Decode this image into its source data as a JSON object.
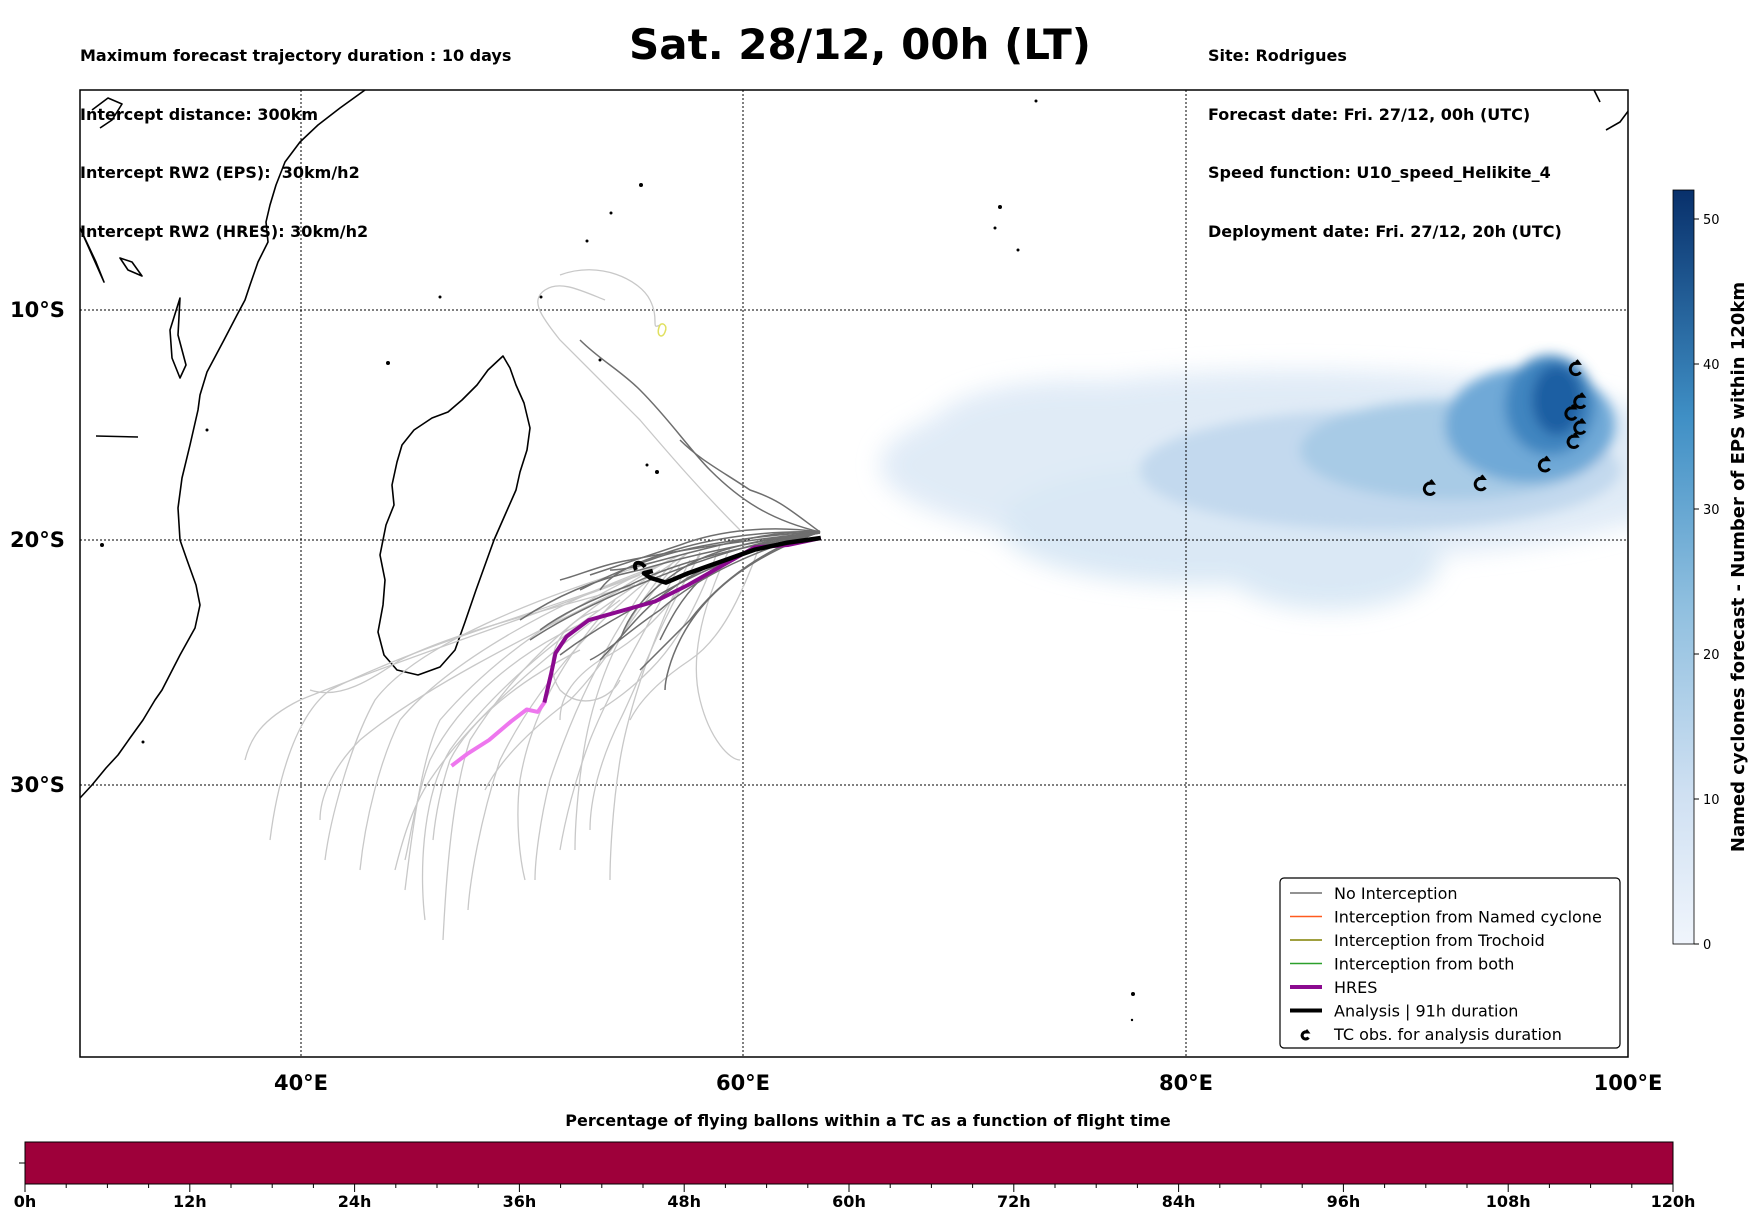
{
  "header": {
    "left_lines": [
      "Maximum forecast trajectory duration : 10 days",
      "Intercept distance: 300km",
      "Intercept RW2 (EPS):  30km/h2",
      "Intercept RW2 (HRES): 30km/h2"
    ],
    "right_lines": [
      "Site: Rodrigues",
      "Forecast date: Fri. 27/12, 00h (UTC)",
      "Speed function: U10_speed_Helikite_4",
      "Deployment date: Fri. 27/12, 20h (UTC)"
    ],
    "title": "Sat. 28/12, 00h (LT)"
  },
  "map": {
    "lon_range": [
      30,
      100
    ],
    "lat_range": [
      -42,
      0
    ],
    "lat_labels": [
      {
        "lat": -10,
        "label": "10°S"
      },
      {
        "lat": -20,
        "label": "20°S"
      },
      {
        "lat": -30,
        "label": "30°S"
      }
    ],
    "lon_labels": [
      {
        "lon": 40,
        "label": "40°E"
      },
      {
        "lon": 60,
        "label": "60°E"
      },
      {
        "lon": 80,
        "label": "80°E"
      },
      {
        "lon": 100,
        "label": "100°E"
      }
    ],
    "hres_track": [
      [
        63.5,
        -19.7
      ],
      [
        62,
        -20
      ],
      [
        60.5,
        -20.1
      ],
      [
        59,
        -20.9
      ],
      [
        57.5,
        -21.7
      ],
      [
        56,
        -22.4
      ],
      [
        54.5,
        -22.8
      ],
      [
        53,
        -23.2
      ],
      [
        52,
        -23.9
      ],
      [
        51.5,
        -24.6
      ],
      [
        51.3,
        -25.5
      ],
      [
        51,
        -26.7
      ],
      [
        50.7,
        -27.1
      ],
      [
        50.2,
        -27.0
      ],
      [
        49.5,
        -27.5
      ],
      [
        48.5,
        -28.3
      ],
      [
        47.5,
        -28.9
      ],
      [
        46.8,
        -29.4
      ]
    ],
    "analysis_track": [
      [
        63.5,
        -19.7
      ],
      [
        62,
        -19.9
      ],
      [
        60.5,
        -20.2
      ],
      [
        59,
        -20.7
      ],
      [
        57.5,
        -21.2
      ],
      [
        56.5,
        -21.6
      ],
      [
        55.8,
        -21.4
      ],
      [
        55.5,
        -21.2
      ],
      [
        55.9,
        -21.1
      ]
    ],
    "tc_obs": [
      [
        91,
        -17.5
      ],
      [
        93.3,
        -17.3
      ],
      [
        96.2,
        -16.5
      ],
      [
        97.5,
        -15.5
      ],
      [
        97.8,
        -14.9
      ],
      [
        97.4,
        -14.3
      ],
      [
        97.8,
        -13.8
      ],
      [
        97.6,
        -12.4
      ]
    ],
    "colors": {
      "hres": "#8b0a8f",
      "hres_light": "#ee77ee",
      "analysis": "#000000",
      "no_interception": "#6e6e6e",
      "named_cyclone": "#ff5a1f",
      "trochoid": "#808000",
      "both": "#2ca02c"
    }
  },
  "colorbar": {
    "label": "Named cyclones forecast - Number of EPS within 120km",
    "min": 0,
    "max": 52,
    "ticks": [
      "0",
      "10",
      "20",
      "30",
      "40",
      "50"
    ],
    "color_low": "#f0f5fc",
    "color_high": "#08306b"
  },
  "legend": {
    "items": [
      {
        "label": "No Interception",
        "style": "thin",
        "color": "#6e6e6e",
        "icon": "line"
      },
      {
        "label": "Interception from Named cyclone",
        "style": "thin",
        "color": "#ff5a1f",
        "icon": "line"
      },
      {
        "label": "Interception from Trochoid",
        "style": "thin",
        "color": "#808000",
        "icon": "line"
      },
      {
        "label": "Interception from both",
        "style": "thin",
        "color": "#2ca02c",
        "icon": "line"
      },
      {
        "label": "HRES",
        "style": "thick",
        "color": "#8b0a8f",
        "icon": "line"
      },
      {
        "label": "Analysis | 91h duration",
        "style": "thick",
        "color": "#000000",
        "icon": "line"
      },
      {
        "label": "TC obs. for analysis duration",
        "style": "symbol",
        "color": "#000000",
        "icon": "cyclone-symbol"
      }
    ]
  },
  "time_bar": {
    "title": "Percentage of flying ballons within a TC as a function of flight time",
    "fill_color": "#9e003a",
    "ticks": [
      "0h",
      "12h",
      "24h",
      "36h",
      "48h",
      "60h",
      "72h",
      "84h",
      "96h",
      "108h",
      "120h"
    ]
  }
}
